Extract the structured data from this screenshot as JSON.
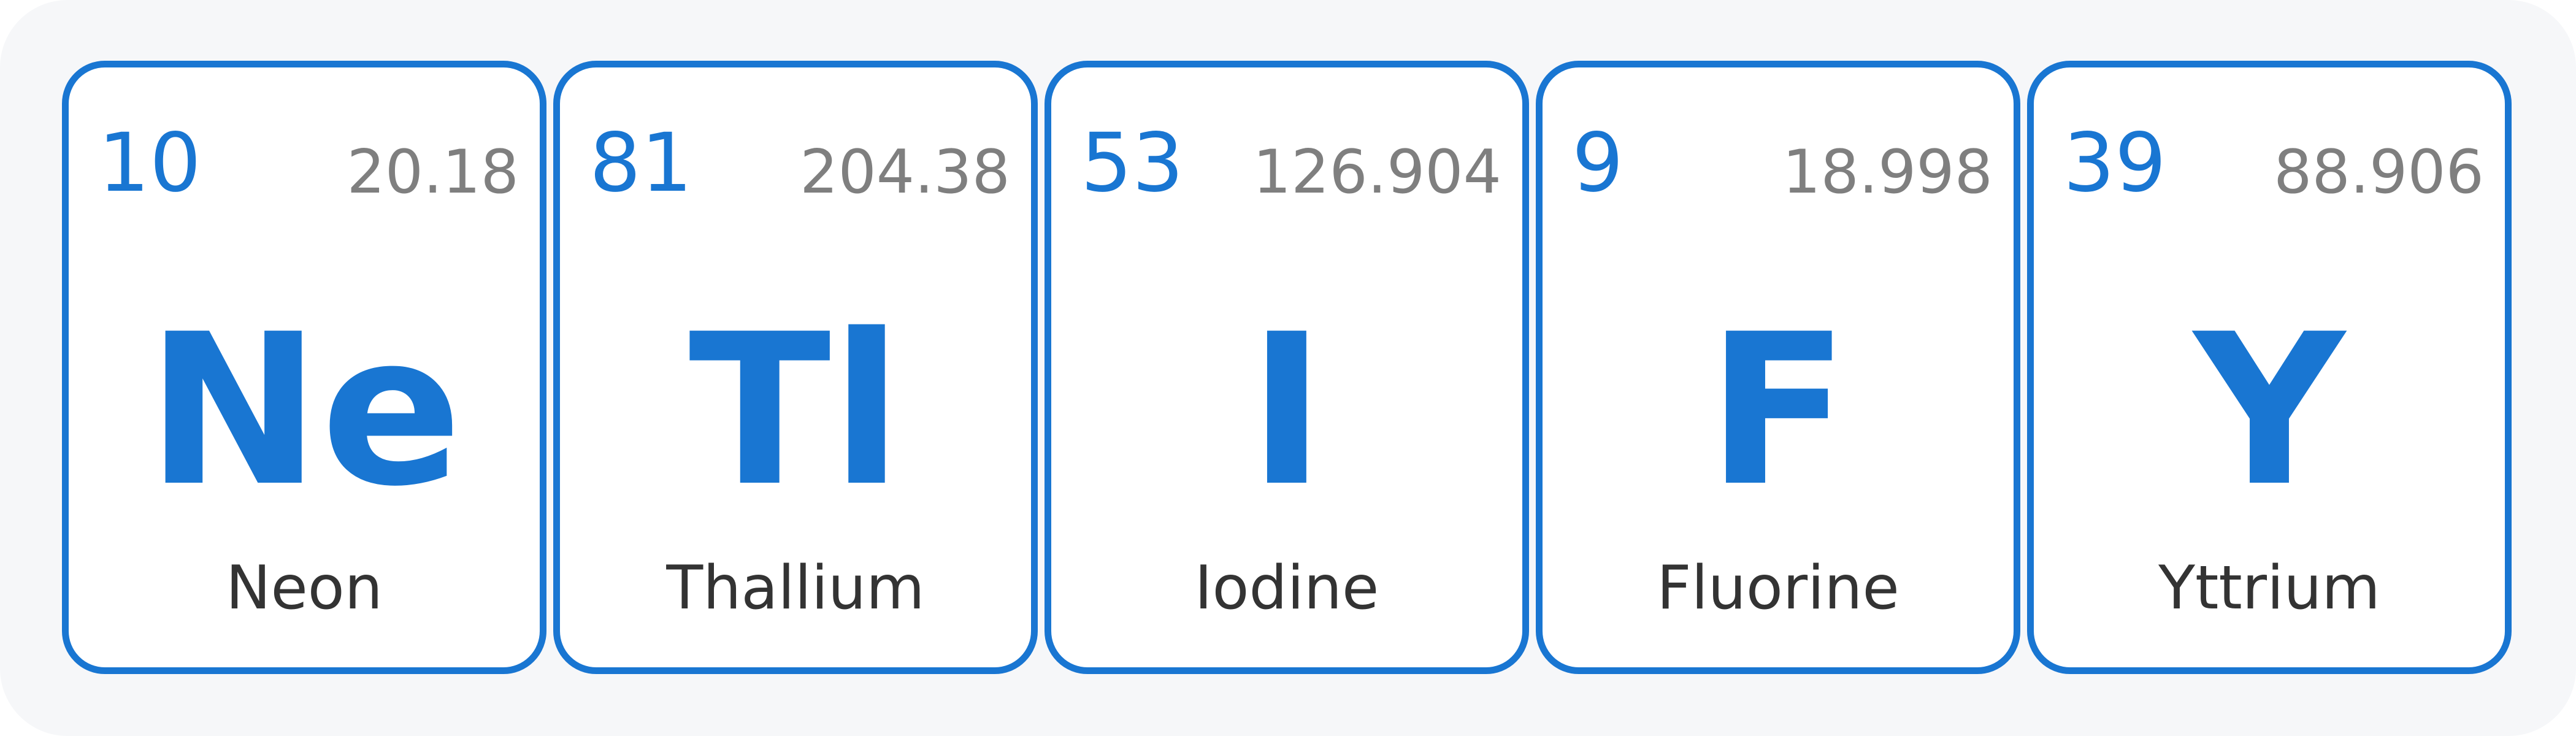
{
  "accent_color": "#1976d2",
  "background_color": "#f6f7f9",
  "mass_color": "#7f7f7f",
  "name_color": "#333333",
  "elements": [
    {
      "number": "10",
      "mass": "20.18",
      "symbol": "Ne",
      "name": "Neon"
    },
    {
      "number": "81",
      "mass": "204.38",
      "symbol": "Tl",
      "name": "Thallium"
    },
    {
      "number": "53",
      "mass": "126.904",
      "symbol": "I",
      "name": "Iodine"
    },
    {
      "number": "9",
      "mass": "18.998",
      "symbol": "F",
      "name": "Fluorine"
    },
    {
      "number": "39",
      "mass": "88.906",
      "symbol": "Y",
      "name": "Yttrium"
    }
  ]
}
